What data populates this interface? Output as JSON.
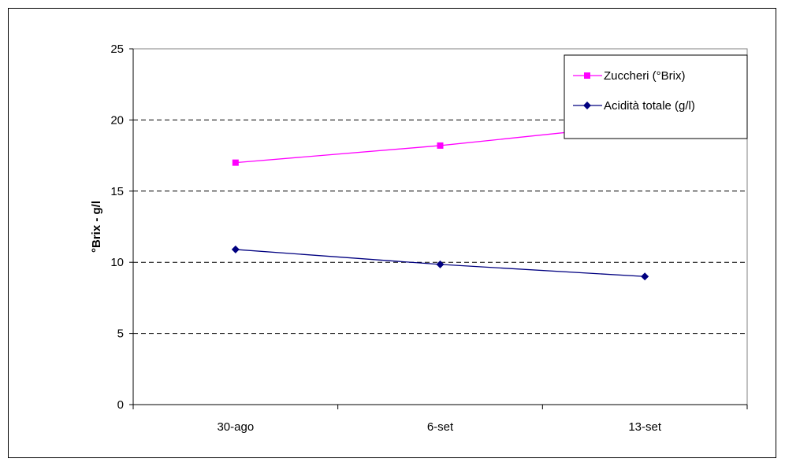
{
  "chart_data": {
    "type": "line",
    "categories": [
      "30-ago",
      "6-set",
      "13-set"
    ],
    "series": [
      {
        "name": "Zuccheri (°Brix)",
        "values": [
          17.0,
          18.2,
          19.7
        ],
        "color": "#ff00ff",
        "marker": "square"
      },
      {
        "name": "Acidità totale (g/l)",
        "values": [
          10.9,
          9.85,
          9.0
        ],
        "color": "#000080",
        "marker": "diamond"
      }
    ],
    "ylabel": "°Brix - g/l",
    "ylim": [
      0,
      25
    ],
    "yticks": [
      0,
      5,
      10,
      15,
      20,
      25
    ],
    "grid": "horizontal-dashed",
    "legend_position": "top-right"
  }
}
